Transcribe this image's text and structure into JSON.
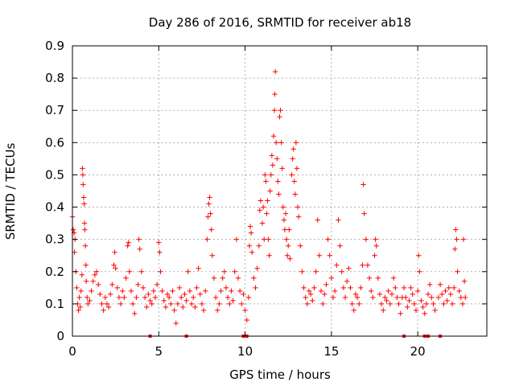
{
  "chart_data": {
    "type": "scatter",
    "title": "Day 286 of 2016, SRMTID for receiver ab18",
    "xlabel": "GPS time / hours",
    "ylabel": "SRMTID / TECUs",
    "xlim": [
      0,
      24
    ],
    "ylim": [
      0,
      0.9
    ],
    "xticks": [
      0,
      5,
      10,
      15,
      20
    ],
    "xtick_labels": [
      "0",
      "5",
      "10",
      "15",
      "20"
    ],
    "yticks": [
      0,
      0.1,
      0.2,
      0.3,
      0.4,
      0.5,
      0.6,
      0.7,
      0.8,
      0.9
    ],
    "ytick_labels": [
      "0",
      "0.1",
      "0.2",
      "0.3",
      "0.4",
      "0.5",
      "0.6",
      "0.7",
      "0.8",
      "0.9"
    ],
    "grid": true,
    "marker": "plus",
    "series_color": "#ff0000",
    "series": [
      {
        "name": "SRMTID",
        "points": [
          [
            0.0,
            0.37
          ],
          [
            0.05,
            0.33
          ],
          [
            0.1,
            0.32
          ],
          [
            0.15,
            0.3
          ],
          [
            0.12,
            0.26
          ],
          [
            0.2,
            0.2
          ],
          [
            0.25,
            0.15
          ],
          [
            0.3,
            0.1
          ],
          [
            0.35,
            0.08
          ],
          [
            0.4,
            0.12
          ],
          [
            0.45,
            0.09
          ],
          [
            0.5,
            0.14
          ],
          [
            0.55,
            0.19
          ],
          [
            0.58,
            0.52
          ],
          [
            0.6,
            0.5
          ],
          [
            0.62,
            0.47
          ],
          [
            0.65,
            0.43
          ],
          [
            0.68,
            0.41
          ],
          [
            0.7,
            0.35
          ],
          [
            0.72,
            0.33
          ],
          [
            0.75,
            0.28
          ],
          [
            0.78,
            0.22
          ],
          [
            0.8,
            0.17
          ],
          [
            0.85,
            0.12
          ],
          [
            0.9,
            0.1
          ],
          [
            1.0,
            0.11
          ],
          [
            1.1,
            0.14
          ],
          [
            1.2,
            0.17
          ],
          [
            1.3,
            0.19
          ],
          [
            1.4,
            0.2
          ],
          [
            1.5,
            0.16
          ],
          [
            1.6,
            0.13
          ],
          [
            1.7,
            0.1
          ],
          [
            1.8,
            0.08
          ],
          [
            1.9,
            0.12
          ],
          [
            2.0,
            0.1
          ],
          [
            2.1,
            0.09
          ],
          [
            2.2,
            0.13
          ],
          [
            2.3,
            0.16
          ],
          [
            2.4,
            0.22
          ],
          [
            2.45,
            0.26
          ],
          [
            2.5,
            0.21
          ],
          [
            2.6,
            0.15
          ],
          [
            2.7,
            0.12
          ],
          [
            2.8,
            0.1
          ],
          [
            2.9,
            0.14
          ],
          [
            3.0,
            0.12
          ],
          [
            3.1,
            0.18
          ],
          [
            3.2,
            0.28
          ],
          [
            3.25,
            0.29
          ],
          [
            3.3,
            0.2
          ],
          [
            3.4,
            0.14
          ],
          [
            3.5,
            0.1
          ],
          [
            3.6,
            0.07
          ],
          [
            3.7,
            0.12
          ],
          [
            3.8,
            0.16
          ],
          [
            3.85,
            0.3
          ],
          [
            3.9,
            0.27
          ],
          [
            4.0,
            0.2
          ],
          [
            4.1,
            0.15
          ],
          [
            4.2,
            0.12
          ],
          [
            4.3,
            0.09
          ],
          [
            4.4,
            0.13
          ],
          [
            4.5,
            0.11
          ],
          [
            4.6,
            0.1
          ],
          [
            4.7,
            0.14
          ],
          [
            4.8,
            0.12
          ],
          [
            4.9,
            0.16
          ],
          [
            5.0,
            0.29
          ],
          [
            5.05,
            0.26
          ],
          [
            5.1,
            0.2
          ],
          [
            5.2,
            0.14
          ],
          [
            5.3,
            0.11
          ],
          [
            5.4,
            0.09
          ],
          [
            5.5,
            0.13
          ],
          [
            5.6,
            0.12
          ],
          [
            5.7,
            0.1
          ],
          [
            5.8,
            0.14
          ],
          [
            5.9,
            0.08
          ],
          [
            6.0,
            0.04
          ],
          [
            6.1,
            0.1
          ],
          [
            6.2,
            0.15
          ],
          [
            6.3,
            0.12
          ],
          [
            6.4,
            0.09
          ],
          [
            6.5,
            0.13
          ],
          [
            6.6,
            0.11
          ],
          [
            6.7,
            0.2
          ],
          [
            6.8,
            0.14
          ],
          [
            6.9,
            0.1
          ],
          [
            7.0,
            0.12
          ],
          [
            7.1,
            0.09
          ],
          [
            7.2,
            0.15
          ],
          [
            7.3,
            0.21
          ],
          [
            7.4,
            0.13
          ],
          [
            7.5,
            0.1
          ],
          [
            7.6,
            0.08
          ],
          [
            7.7,
            0.14
          ],
          [
            7.8,
            0.3
          ],
          [
            7.85,
            0.37
          ],
          [
            7.9,
            0.41
          ],
          [
            7.95,
            0.43
          ],
          [
            8.0,
            0.38
          ],
          [
            8.05,
            0.33
          ],
          [
            8.1,
            0.25
          ],
          [
            8.2,
            0.18
          ],
          [
            8.3,
            0.12
          ],
          [
            8.4,
            0.08
          ],
          [
            8.5,
            0.1
          ],
          [
            8.6,
            0.14
          ],
          [
            8.7,
            0.18
          ],
          [
            8.8,
            0.2
          ],
          [
            8.9,
            0.15
          ],
          [
            9.0,
            0.12
          ],
          [
            9.1,
            0.1
          ],
          [
            9.2,
            0.14
          ],
          [
            9.3,
            0.11
          ],
          [
            9.4,
            0.2
          ],
          [
            9.5,
            0.3
          ],
          [
            9.6,
            0.18
          ],
          [
            9.7,
            0.14
          ],
          [
            9.8,
            0.1
          ],
          [
            9.9,
            0.13
          ],
          [
            10.0,
            0.08
          ],
          [
            10.1,
            0.05
          ],
          [
            10.2,
            0.12
          ],
          [
            10.25,
            0.28
          ],
          [
            10.3,
            0.34
          ],
          [
            10.35,
            0.32
          ],
          [
            10.4,
            0.26
          ],
          [
            10.5,
            0.18
          ],
          [
            10.6,
            0.15
          ],
          [
            10.7,
            0.21
          ],
          [
            10.8,
            0.28
          ],
          [
            10.85,
            0.39
          ],
          [
            10.9,
            0.42
          ],
          [
            11.0,
            0.35
          ],
          [
            11.05,
            0.4
          ],
          [
            11.1,
            0.3
          ],
          [
            11.15,
            0.5
          ],
          [
            11.2,
            0.48
          ],
          [
            11.25,
            0.38
          ],
          [
            11.3,
            0.42
          ],
          [
            11.35,
            0.3
          ],
          [
            11.4,
            0.25
          ],
          [
            11.45,
            0.45
          ],
          [
            11.5,
            0.5
          ],
          [
            11.55,
            0.56
          ],
          [
            11.6,
            0.53
          ],
          [
            11.65,
            0.62
          ],
          [
            11.7,
            0.7
          ],
          [
            11.72,
            0.75
          ],
          [
            11.75,
            0.82
          ],
          [
            11.8,
            0.6
          ],
          [
            11.85,
            0.55
          ],
          [
            11.9,
            0.48
          ],
          [
            11.95,
            0.44
          ],
          [
            12.0,
            0.68
          ],
          [
            12.05,
            0.7
          ],
          [
            12.1,
            0.6
          ],
          [
            12.15,
            0.52
          ],
          [
            12.2,
            0.4
          ],
          [
            12.25,
            0.36
          ],
          [
            12.3,
            0.33
          ],
          [
            12.35,
            0.38
          ],
          [
            12.4,
            0.3
          ],
          [
            12.45,
            0.25
          ],
          [
            12.5,
            0.28
          ],
          [
            12.55,
            0.33
          ],
          [
            12.6,
            0.24
          ],
          [
            12.7,
            0.5
          ],
          [
            12.75,
            0.55
          ],
          [
            12.8,
            0.58
          ],
          [
            12.85,
            0.48
          ],
          [
            12.9,
            0.44
          ],
          [
            12.95,
            0.6
          ],
          [
            13.0,
            0.52
          ],
          [
            13.05,
            0.4
          ],
          [
            13.1,
            0.37
          ],
          [
            13.2,
            0.28
          ],
          [
            13.3,
            0.2
          ],
          [
            13.4,
            0.15
          ],
          [
            13.5,
            0.12
          ],
          [
            13.6,
            0.1
          ],
          [
            13.7,
            0.14
          ],
          [
            13.8,
            0.13
          ],
          [
            13.9,
            0.11
          ],
          [
            14.0,
            0.15
          ],
          [
            14.1,
            0.2
          ],
          [
            14.2,
            0.36
          ],
          [
            14.3,
            0.25
          ],
          [
            14.4,
            0.14
          ],
          [
            14.5,
            0.1
          ],
          [
            14.6,
            0.13
          ],
          [
            14.7,
            0.16
          ],
          [
            14.8,
            0.3
          ],
          [
            14.9,
            0.25
          ],
          [
            15.0,
            0.18
          ],
          [
            15.1,
            0.12
          ],
          [
            15.2,
            0.14
          ],
          [
            15.3,
            0.22
          ],
          [
            15.4,
            0.36
          ],
          [
            15.5,
            0.28
          ],
          [
            15.6,
            0.2
          ],
          [
            15.7,
            0.15
          ],
          [
            15.8,
            0.12
          ],
          [
            15.9,
            0.17
          ],
          [
            16.0,
            0.21
          ],
          [
            16.1,
            0.15
          ],
          [
            16.2,
            0.1
          ],
          [
            16.3,
            0.08
          ],
          [
            16.4,
            0.13
          ],
          [
            16.5,
            0.12
          ],
          [
            16.6,
            0.1
          ],
          [
            16.7,
            0.15
          ],
          [
            16.8,
            0.22
          ],
          [
            16.85,
            0.47
          ],
          [
            16.9,
            0.38
          ],
          [
            17.0,
            0.3
          ],
          [
            17.1,
            0.22
          ],
          [
            17.2,
            0.18
          ],
          [
            17.3,
            0.14
          ],
          [
            17.4,
            0.12
          ],
          [
            17.5,
            0.25
          ],
          [
            17.55,
            0.3
          ],
          [
            17.6,
            0.28
          ],
          [
            17.7,
            0.18
          ],
          [
            17.8,
            0.13
          ],
          [
            17.9,
            0.1
          ],
          [
            18.0,
            0.08
          ],
          [
            18.1,
            0.12
          ],
          [
            18.2,
            0.11
          ],
          [
            18.3,
            0.14
          ],
          [
            18.4,
            0.1
          ],
          [
            18.5,
            0.13
          ],
          [
            18.6,
            0.18
          ],
          [
            18.7,
            0.15
          ],
          [
            18.8,
            0.12
          ],
          [
            18.9,
            0.1
          ],
          [
            19.0,
            0.07
          ],
          [
            19.1,
            0.12
          ],
          [
            19.2,
            0.15
          ],
          [
            19.3,
            0.12
          ],
          [
            19.4,
            0.09
          ],
          [
            19.5,
            0.11
          ],
          [
            19.6,
            0.15
          ],
          [
            19.7,
            0.13
          ],
          [
            19.8,
            0.1
          ],
          [
            19.9,
            0.08
          ],
          [
            20.0,
            0.14
          ],
          [
            20.05,
            0.25
          ],
          [
            20.1,
            0.2
          ],
          [
            20.2,
            0.11
          ],
          [
            20.3,
            0.09
          ],
          [
            20.4,
            0.07
          ],
          [
            20.5,
            0.1
          ],
          [
            20.6,
            0.13
          ],
          [
            20.7,
            0.16
          ],
          [
            20.8,
            0.12
          ],
          [
            20.9,
            0.1
          ],
          [
            21.0,
            0.08
          ],
          [
            21.2,
            0.12
          ],
          [
            21.3,
            0.16
          ],
          [
            21.4,
            0.13
          ],
          [
            21.5,
            0.1
          ],
          [
            21.6,
            0.14
          ],
          [
            21.7,
            0.11
          ],
          [
            21.8,
            0.15
          ],
          [
            21.9,
            0.13
          ],
          [
            22.0,
            0.1
          ],
          [
            22.1,
            0.15
          ],
          [
            22.15,
            0.27
          ],
          [
            22.2,
            0.33
          ],
          [
            22.25,
            0.3
          ],
          [
            22.3,
            0.2
          ],
          [
            22.4,
            0.14
          ],
          [
            22.5,
            0.12
          ],
          [
            22.6,
            0.1
          ],
          [
            22.65,
            0.3
          ],
          [
            22.7,
            0.17
          ],
          [
            22.75,
            0.12
          ]
        ],
        "zero_points": [
          4.5,
          6.6,
          9.9,
          10.1,
          19.2,
          20.4,
          20.6,
          21.3
        ]
      }
    ]
  }
}
